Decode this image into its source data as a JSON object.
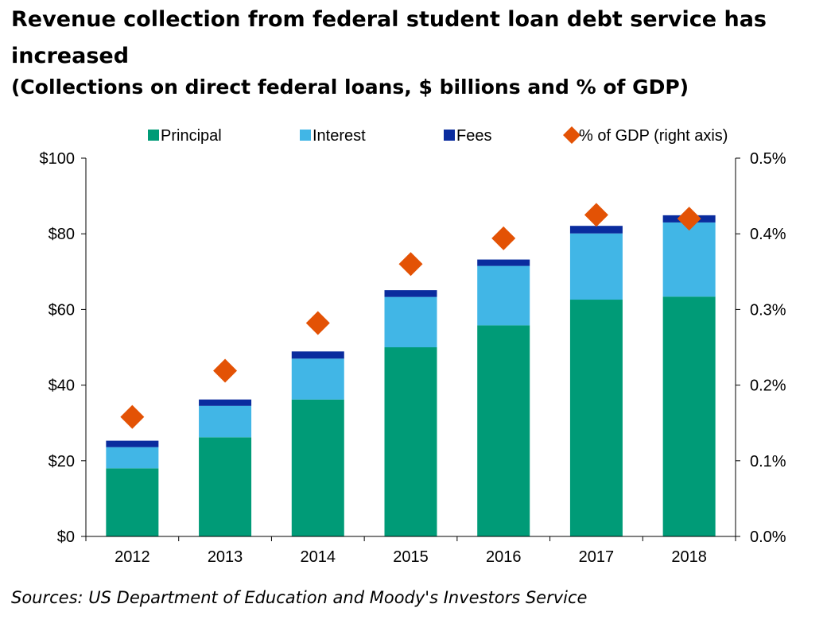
{
  "chart_data": {
    "type": "bar",
    "stacked": true,
    "title": "Revenue collection from federal student loan debt service has increased",
    "subtitle": "(Collections on direct federal loans, $ billions and % of GDP)",
    "categories": [
      "2012",
      "2013",
      "2014",
      "2015",
      "2016",
      "2017",
      "2018"
    ],
    "series": [
      {
        "name": "Principal",
        "type": "bar",
        "axis": "left",
        "color": "#009B77",
        "values": [
          18,
          26.2,
          36.2,
          50,
          55.8,
          62.6,
          63.4
        ]
      },
      {
        "name": "Interest",
        "type": "bar",
        "axis": "left",
        "color": "#41B6E6",
        "values": [
          5.6,
          8.3,
          10.8,
          13.3,
          15.7,
          17.5,
          19.6
        ]
      },
      {
        "name": "Fees",
        "type": "bar",
        "axis": "left",
        "color": "#0A2C9E",
        "values": [
          1.7,
          1.7,
          1.9,
          1.8,
          1.7,
          2,
          1.9
        ]
      },
      {
        "name": "% of GDP (right axis)",
        "type": "scatter",
        "axis": "right",
        "marker": "diamond",
        "color": "#E35205",
        "values": [
          0.158,
          0.219,
          0.282,
          0.36,
          0.394,
          0.425,
          0.42
        ]
      }
    ],
    "y_left": {
      "ylim": [
        0,
        100
      ],
      "ticks": [
        0,
        20,
        40,
        60,
        80,
        100
      ],
      "tick_labels": [
        "$0",
        "$20",
        "$40",
        "$60",
        "$80",
        "$100"
      ]
    },
    "y_right": {
      "ylim": [
        0,
        0.5
      ],
      "ticks": [
        0,
        0.1,
        0.2,
        0.3,
        0.4,
        0.5
      ],
      "tick_labels": [
        "0.0%",
        "0.1%",
        "0.2%",
        "0.3%",
        "0.4%",
        "0.5%"
      ]
    },
    "grid": false,
    "legend": "top",
    "source": "Sources: US Department of Education and Moody's Investors Service"
  }
}
